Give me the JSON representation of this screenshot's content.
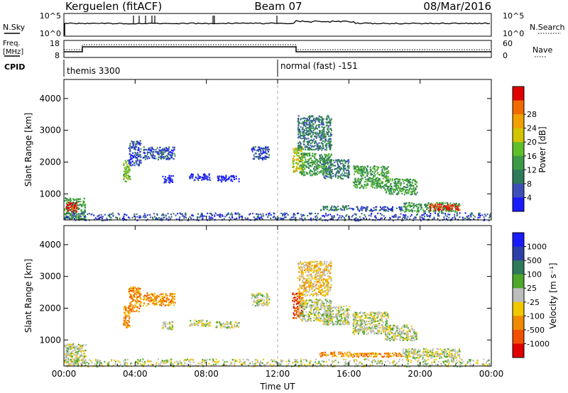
{
  "header": {
    "station": "Kerguelen (fitACF)",
    "beam": "Beam 07",
    "date": "08/Mar/2016"
  },
  "noise_panel": {
    "left_label": "N.Sky",
    "right_label": "N.Search",
    "left_ticks": [
      "10^5",
      "10^0"
    ],
    "right_ticks": [
      "10^5",
      "10^0"
    ]
  },
  "freq_panel": {
    "left_label_line1": "Freq.",
    "left_label_line2": "[MHz]",
    "right_label": "Nave",
    "left_ticks": [
      "18",
      "8"
    ],
    "right_ticks": [
      "60",
      "0"
    ],
    "cpid_label": "CPID"
  },
  "cpid": {
    "segments": [
      {
        "label": "themis 3300",
        "start_hour": 0
      },
      {
        "label": "normal (fast) -151",
        "start_hour": 12
      }
    ]
  },
  "colors": {
    "power": [
      "#1a1aff",
      "#3e4fb8",
      "#2e7a5a",
      "#3c9a46",
      "#5fbf2a",
      "#d2c400",
      "#f0a000",
      "#f06a00",
      "#e00000"
    ],
    "velocity": [
      "#1a1aff",
      "#2d3fa8",
      "#2e7a5a",
      "#4ca82a",
      "#bdbdbd",
      "#f0c800",
      "#f08a00",
      "#f05000",
      "#e00000"
    ]
  },
  "chart_data": [
    {
      "type": "heatmap",
      "name": "power",
      "x_ticks": [
        "00:00",
        "04:00",
        "08:00",
        "12:00",
        "16:00",
        "20:00",
        "00:00"
      ],
      "xlim_hours": [
        0,
        24
      ],
      "ylabel": "Slant Range [km]",
      "y_ticks": [
        1000,
        2000,
        3000,
        4000
      ],
      "ylim_km": [
        180,
        4600
      ],
      "colorbar_label": "Power [dB]",
      "colorbar_ticks": [
        "4",
        "8",
        "12",
        "16",
        "20",
        "24",
        "28"
      ],
      "regions": [
        {
          "t0": 0.0,
          "t1": 1.2,
          "r0": 200,
          "r1": 900,
          "level": 3
        },
        {
          "t0": 0.1,
          "t1": 0.7,
          "r0": 450,
          "r1": 750,
          "level": 8
        },
        {
          "t0": 0.0,
          "t1": 24.0,
          "r0": 180,
          "r1": 420,
          "level": 1
        },
        {
          "t0": 3.3,
          "t1": 3.7,
          "r0": 1400,
          "r1": 2100,
          "level": 4
        },
        {
          "t0": 3.6,
          "t1": 4.3,
          "r0": 1900,
          "r1": 2700,
          "level": 1
        },
        {
          "t0": 4.4,
          "t1": 6.2,
          "r0": 2100,
          "r1": 2500,
          "level": 1
        },
        {
          "t0": 5.5,
          "t1": 6.1,
          "r0": 1350,
          "r1": 1600,
          "level": 0
        },
        {
          "t0": 7.0,
          "t1": 8.2,
          "r0": 1450,
          "r1": 1650,
          "level": 0
        },
        {
          "t0": 8.5,
          "t1": 9.8,
          "r0": 1400,
          "r1": 1600,
          "level": 0
        },
        {
          "t0": 10.5,
          "t1": 11.5,
          "r0": 2100,
          "r1": 2500,
          "level": 1
        },
        {
          "t0": 12.8,
          "t1": 13.4,
          "r0": 1700,
          "r1": 2500,
          "level": 5
        },
        {
          "t0": 13.1,
          "t1": 15.0,
          "r0": 2400,
          "r1": 3500,
          "level": 2
        },
        {
          "t0": 13.2,
          "t1": 15.0,
          "r0": 1600,
          "r1": 2300,
          "level": 3
        },
        {
          "t0": 14.5,
          "t1": 16.0,
          "r0": 1500,
          "r1": 2100,
          "level": 2
        },
        {
          "t0": 16.2,
          "t1": 18.2,
          "r0": 1200,
          "r1": 1900,
          "level": 3
        },
        {
          "t0": 18.0,
          "t1": 19.8,
          "r0": 1000,
          "r1": 1500,
          "level": 3
        },
        {
          "t0": 14.3,
          "t1": 16.0,
          "r0": 500,
          "r1": 650,
          "level": 2
        },
        {
          "t0": 16.0,
          "t1": 19.0,
          "r0": 480,
          "r1": 620,
          "level": 1
        },
        {
          "t0": 19.0,
          "t1": 22.2,
          "r0": 450,
          "r1": 750,
          "level": 3
        },
        {
          "t0": 20.5,
          "t1": 22.2,
          "r0": 500,
          "r1": 700,
          "level": 8
        }
      ]
    },
    {
      "type": "heatmap",
      "name": "velocity",
      "x_ticks": [
        "00:00",
        "04:00",
        "08:00",
        "12:00",
        "16:00",
        "20:00",
        "00:00"
      ],
      "xlabel": "Time UT",
      "xlim_hours": [
        0,
        24
      ],
      "ylabel": "Slant Range [km]",
      "y_ticks": [
        1000,
        2000,
        3000,
        4000
      ],
      "ylim_km": [
        180,
        4600
      ],
      "colorbar_label": "Velocity [m s⁻¹]",
      "colorbar_ticks": [
        "1000",
        "500",
        "100",
        "25",
        "-25",
        "-100",
        "-500",
        "-1000"
      ],
      "regions": [
        {
          "t0": 0.0,
          "t1": 1.2,
          "r0": 200,
          "r1": 900,
          "level": 4
        },
        {
          "t0": 0.0,
          "t1": 24.0,
          "r0": 180,
          "r1": 420,
          "level": 4
        },
        {
          "t0": 3.3,
          "t1": 3.7,
          "r0": 1400,
          "r1": 2100,
          "level": 6
        },
        {
          "t0": 3.6,
          "t1": 4.3,
          "r0": 1900,
          "r1": 2700,
          "level": 6
        },
        {
          "t0": 4.4,
          "t1": 6.2,
          "r0": 2100,
          "r1": 2500,
          "level": 6
        },
        {
          "t0": 5.5,
          "t1": 6.1,
          "r0": 1350,
          "r1": 1600,
          "level": 4
        },
        {
          "t0": 7.0,
          "t1": 8.2,
          "r0": 1450,
          "r1": 1650,
          "level": 4
        },
        {
          "t0": 8.5,
          "t1": 9.8,
          "r0": 1400,
          "r1": 1600,
          "level": 4
        },
        {
          "t0": 10.5,
          "t1": 11.5,
          "r0": 2100,
          "r1": 2500,
          "level": 4
        },
        {
          "t0": 12.8,
          "t1": 13.4,
          "r0": 1700,
          "r1": 2500,
          "level": 7
        },
        {
          "t0": 13.1,
          "t1": 15.0,
          "r0": 2400,
          "r1": 3500,
          "level": 5
        },
        {
          "t0": 13.2,
          "t1": 15.0,
          "r0": 1600,
          "r1": 2300,
          "level": 4
        },
        {
          "t0": 14.5,
          "t1": 16.0,
          "r0": 1500,
          "r1": 2100,
          "level": 4
        },
        {
          "t0": 16.2,
          "t1": 18.2,
          "r0": 1200,
          "r1": 1900,
          "level": 4
        },
        {
          "t0": 18.0,
          "t1": 19.8,
          "r0": 1000,
          "r1": 1500,
          "level": 4
        },
        {
          "t0": 14.3,
          "t1": 16.0,
          "r0": 500,
          "r1": 650,
          "level": 6
        },
        {
          "t0": 16.0,
          "t1": 19.0,
          "r0": 480,
          "r1": 620,
          "level": 6
        },
        {
          "t0": 19.0,
          "t1": 22.2,
          "r0": 450,
          "r1": 750,
          "level": 4
        }
      ]
    }
  ]
}
